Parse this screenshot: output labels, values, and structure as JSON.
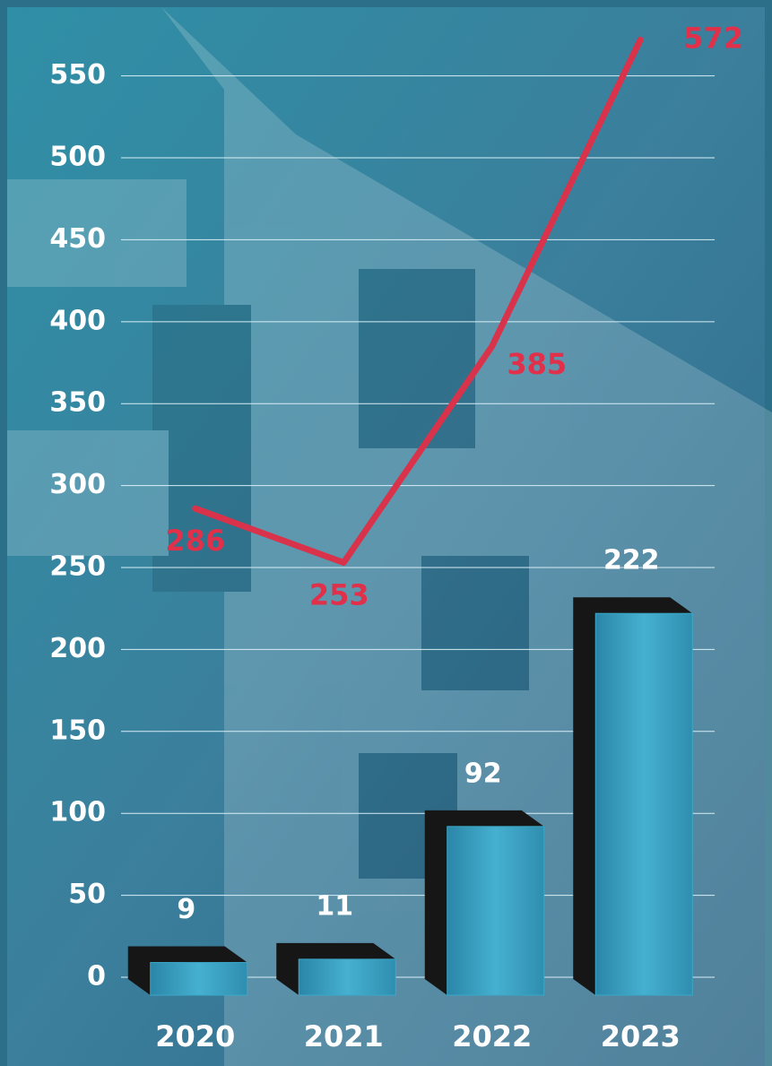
{
  "chart_data": {
    "type": "combo",
    "categories": [
      "2020",
      "2021",
      "2022",
      "2023"
    ],
    "series": [
      {
        "type": "bar",
        "color": "#3aa8c8",
        "values": [
          9,
          11,
          92,
          222
        ]
      },
      {
        "type": "line",
        "color": "#d8334a",
        "values": [
          286,
          253,
          385,
          572
        ]
      }
    ],
    "ylim": [
      0,
      590
    ],
    "yticks": [
      0,
      50,
      100,
      150,
      200,
      250,
      300,
      350,
      400,
      450,
      500,
      550
    ],
    "grid": true
  }
}
